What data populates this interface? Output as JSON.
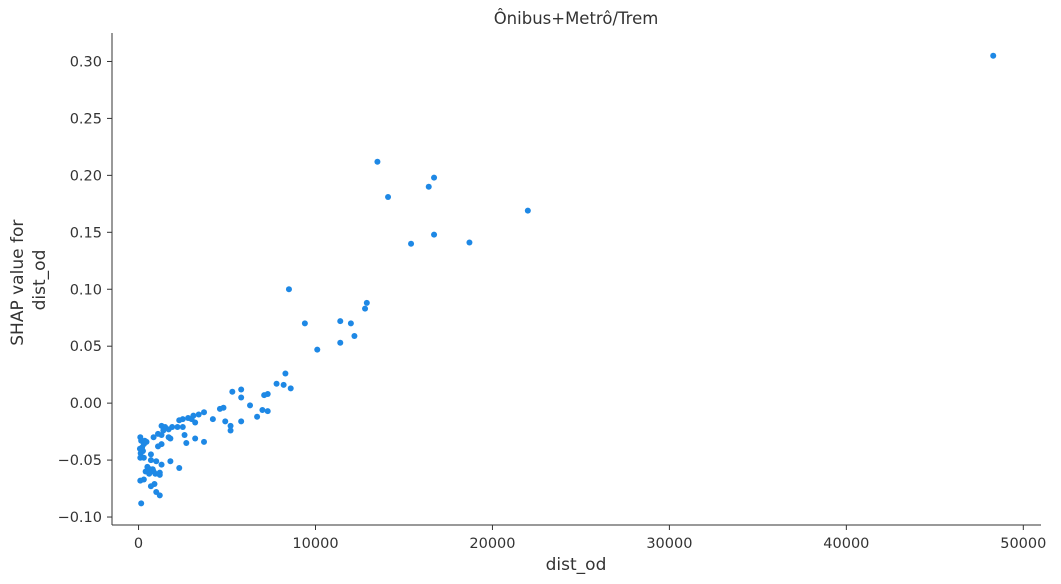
{
  "chart_data": {
    "type": "scatter",
    "title": "Ônibus+Metrô/Trem",
    "xlabel": "dist_od",
    "ylabel": [
      "SHAP value for",
      "dist_od"
    ],
    "xlim": [
      -1500,
      51000
    ],
    "ylim": [
      -0.107,
      0.325
    ],
    "x_ticks": [
      0,
      10000,
      20000,
      30000,
      40000,
      50000
    ],
    "y_ticks": [
      -0.1,
      -0.05,
      0.0,
      0.05,
      0.1,
      0.15,
      0.2,
      0.25,
      0.3
    ],
    "y_tick_labels": [
      "−0.10",
      "−0.05",
      "0.00",
      "0.05",
      "0.10",
      "0.15",
      "0.20",
      "0.25",
      "0.30"
    ],
    "grid": false,
    "point_color": "#1e88e5",
    "points": [
      [
        48300,
        0.305
      ],
      [
        13500,
        0.212
      ],
      [
        16700,
        0.198
      ],
      [
        16400,
        0.19
      ],
      [
        14100,
        0.181
      ],
      [
        22000,
        0.169
      ],
      [
        16700,
        0.148
      ],
      [
        18700,
        0.141
      ],
      [
        15400,
        0.14
      ],
      [
        8500,
        0.1
      ],
      [
        12900,
        0.088
      ],
      [
        12800,
        0.083
      ],
      [
        11400,
        0.072
      ],
      [
        9400,
        0.07
      ],
      [
        12000,
        0.07
      ],
      [
        12200,
        0.059
      ],
      [
        11400,
        0.053
      ],
      [
        10100,
        0.047
      ],
      [
        8300,
        0.026
      ],
      [
        7800,
        0.017
      ],
      [
        8200,
        0.016
      ],
      [
        8600,
        0.013
      ],
      [
        5800,
        0.012
      ],
      [
        5300,
        0.01
      ],
      [
        7300,
        0.008
      ],
      [
        7100,
        0.007
      ],
      [
        5800,
        0.005
      ],
      [
        6300,
        -0.002
      ],
      [
        7000,
        -0.006
      ],
      [
        7300,
        -0.007
      ],
      [
        4800,
        -0.004
      ],
      [
        4600,
        -0.005
      ],
      [
        3700,
        -0.008
      ],
      [
        6700,
        -0.012
      ],
      [
        3400,
        -0.01
      ],
      [
        3100,
        -0.011
      ],
      [
        2800,
        -0.013
      ],
      [
        3000,
        -0.014
      ],
      [
        2500,
        -0.014
      ],
      [
        2300,
        -0.015
      ],
      [
        4200,
        -0.014
      ],
      [
        5800,
        -0.016
      ],
      [
        4900,
        -0.016
      ],
      [
        3200,
        -0.017
      ],
      [
        5200,
        -0.02
      ],
      [
        1900,
        -0.021
      ],
      [
        2200,
        -0.021
      ],
      [
        2500,
        -0.021
      ],
      [
        1300,
        -0.02
      ],
      [
        1500,
        -0.021
      ],
      [
        1700,
        -0.023
      ],
      [
        1400,
        -0.024
      ],
      [
        5200,
        -0.024
      ],
      [
        1100,
        -0.027
      ],
      [
        1300,
        -0.028
      ],
      [
        2600,
        -0.028
      ],
      [
        3200,
        -0.031
      ],
      [
        1700,
        -0.03
      ],
      [
        1800,
        -0.031
      ],
      [
        850,
        -0.03
      ],
      [
        3700,
        -0.034
      ],
      [
        2700,
        -0.035
      ],
      [
        1300,
        -0.036
      ],
      [
        1100,
        -0.038
      ],
      [
        100,
        -0.03
      ],
      [
        350,
        -0.033
      ],
      [
        150,
        -0.033
      ],
      [
        450,
        -0.034
      ],
      [
        300,
        -0.036
      ],
      [
        200,
        -0.039
      ],
      [
        250,
        -0.042
      ],
      [
        80,
        -0.04
      ],
      [
        120,
        -0.044
      ],
      [
        100,
        -0.048
      ],
      [
        300,
        -0.048
      ],
      [
        700,
        -0.045
      ],
      [
        700,
        -0.05
      ],
      [
        1000,
        -0.051
      ],
      [
        1800,
        -0.051
      ],
      [
        2300,
        -0.057
      ],
      [
        1300,
        -0.054
      ],
      [
        500,
        -0.056
      ],
      [
        650,
        -0.058
      ],
      [
        800,
        -0.058
      ],
      [
        850,
        -0.06
      ],
      [
        950,
        -0.062
      ],
      [
        1200,
        -0.061
      ],
      [
        600,
        -0.062
      ],
      [
        400,
        -0.06
      ],
      [
        1200,
        -0.063
      ],
      [
        300,
        -0.067
      ],
      [
        100,
        -0.068
      ],
      [
        900,
        -0.071
      ],
      [
        700,
        -0.073
      ],
      [
        1000,
        -0.078
      ],
      [
        1200,
        -0.081
      ],
      [
        150,
        -0.088
      ]
    ]
  }
}
